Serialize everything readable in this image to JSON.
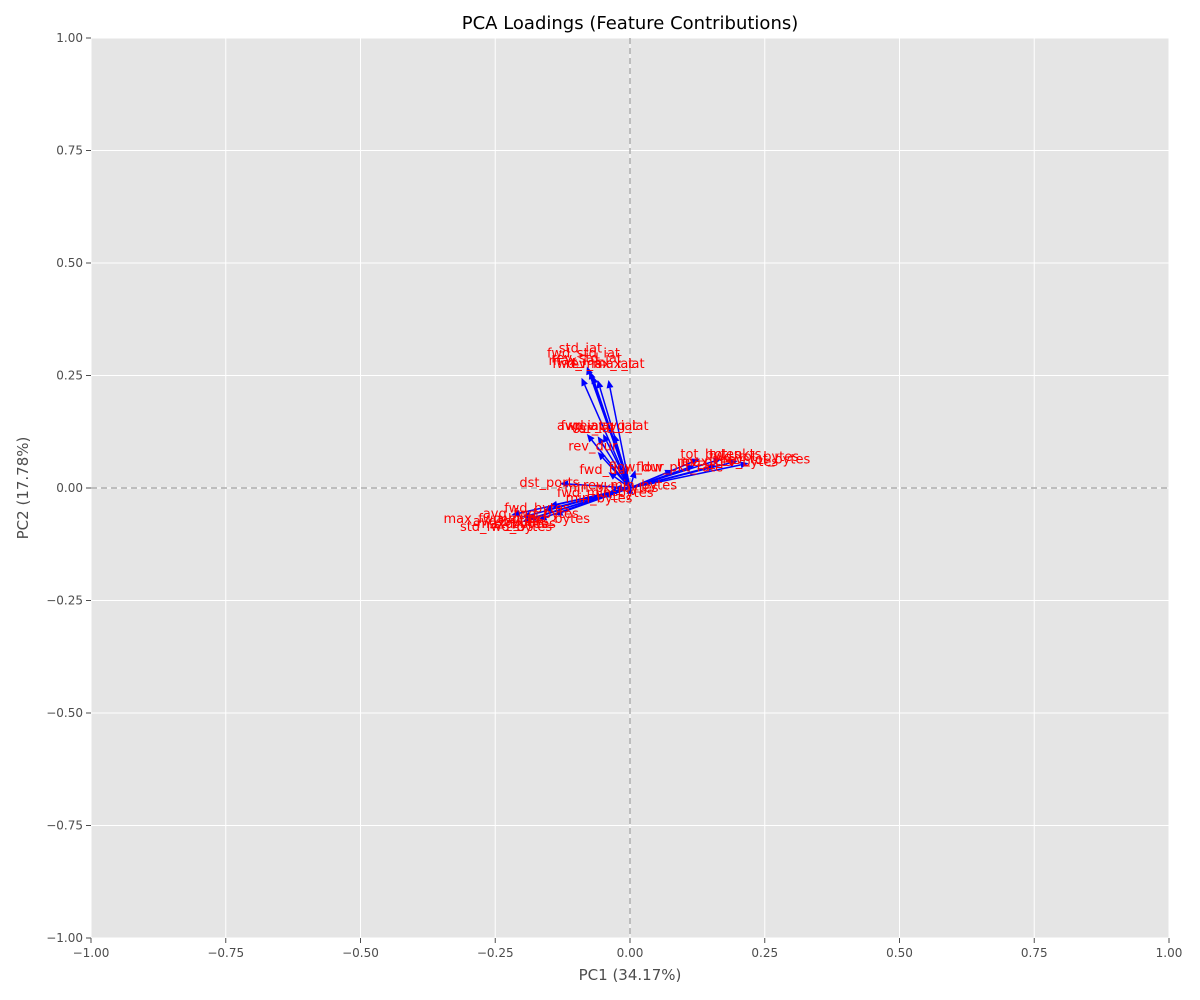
{
  "chart_data": {
    "type": "scatter",
    "subtype": "pca-loadings-biplot",
    "title": "PCA Loadings (Feature Contributions)",
    "xlabel": "PC1 (34.17%)",
    "ylabel": "PC2 (17.78%)",
    "xlim": [
      -1.0,
      1.0
    ],
    "ylim": [
      -1.0,
      1.0
    ],
    "x_ticks": [
      -1.0,
      -0.75,
      -0.5,
      -0.25,
      0.0,
      0.25,
      0.5,
      0.75,
      1.0
    ],
    "y_ticks": [
      -1.0,
      -0.75,
      -0.5,
      -0.25,
      0.0,
      0.25,
      0.5,
      0.75,
      1.0
    ],
    "x_tick_labels": [
      "−1.00",
      "−0.75",
      "−0.50",
      "−0.25",
      "0.00",
      "0.25",
      "0.50",
      "0.75",
      "1.00"
    ],
    "y_tick_labels": [
      "−1.00",
      "−0.75",
      "−0.50",
      "−0.25",
      "0.00",
      "0.25",
      "0.50",
      "0.75",
      "1.00"
    ],
    "grid": true,
    "reference_lines": [
      {
        "axis": "x",
        "value": 0,
        "style": "dashed"
      },
      {
        "axis": "y",
        "value": 0,
        "style": "dashed"
      }
    ],
    "colors": {
      "background": "#e5e5e5",
      "grid": "#ffffff",
      "arrow": "#0000ff",
      "label": "#ff0000",
      "reference_line": "#b0b0b0"
    },
    "loadings": [
      {
        "label": "std_iat",
        "x": -0.08,
        "y": 0.27
      },
      {
        "label": "fwd_std_iat",
        "x": -0.075,
        "y": 0.26
      },
      {
        "label": "rev_std_iat",
        "x": -0.07,
        "y": 0.25
      },
      {
        "label": "max_iat",
        "x": -0.09,
        "y": 0.245
      },
      {
        "label": "fwd_max_iat",
        "x": -0.06,
        "y": 0.24
      },
      {
        "label": "rev_max_iat",
        "x": -0.04,
        "y": 0.24
      },
      {
        "label": "avg_iat",
        "x": -0.08,
        "y": 0.12
      },
      {
        "label": "fwd_avg_iat",
        "x": -0.05,
        "y": 0.12
      },
      {
        "label": "rev_avg_iat",
        "x": -0.03,
        "y": 0.12
      },
      {
        "label": "var_iat",
        "x": -0.06,
        "y": 0.115
      },
      {
        "label": "rev_dur",
        "x": -0.06,
        "y": 0.08
      },
      {
        "label": "dst_ports",
        "x": -0.13,
        "y": 0.01
      },
      {
        "label": "fwd_dur",
        "x": -0.04,
        "y": 0.035
      },
      {
        "label": "flow_dur",
        "x": 0.01,
        "y": 0.04
      },
      {
        "label": "flow_pkt_rate",
        "x": 0.08,
        "y": 0.04
      },
      {
        "label": "tot_bytes",
        "x": 0.13,
        "y": 0.065
      },
      {
        "label": "tot_pkts",
        "x": 0.17,
        "y": 0.065
      },
      {
        "label": "fwd_tot_bytes",
        "x": 0.2,
        "y": 0.06
      },
      {
        "label": "rev_tot_bytes",
        "x": 0.22,
        "y": 0.055
      },
      {
        "label": "max_rev_bytes",
        "x": 0.16,
        "y": 0.05
      },
      {
        "label": "rev_pkts",
        "x": 0.12,
        "y": 0.05
      },
      {
        "label": "min_pkt_bytes",
        "x": -0.03,
        "y": 0.0
      },
      {
        "label": "rev_min_bytes",
        "x": 0.0,
        "y": 0.005
      },
      {
        "label": "fwd_min_bytes",
        "x": -0.04,
        "y": -0.01
      },
      {
        "label": "min_bytes",
        "x": -0.05,
        "y": -0.02
      },
      {
        "label": "avg_fwd_bytes",
        "x": -0.16,
        "y": -0.05
      },
      {
        "label": "fwd_bytes",
        "x": -0.15,
        "y": -0.04
      },
      {
        "label": "max_fwd_bytes",
        "x": -0.22,
        "y": -0.06
      },
      {
        "label": "avg_bytes",
        "x": -0.2,
        "y": -0.065
      },
      {
        "label": "max_bytes",
        "x": -0.19,
        "y": -0.07
      },
      {
        "label": "std_fwd_bytes",
        "x": -0.2,
        "y": -0.075
      },
      {
        "label": "std_bytes",
        "x": -0.17,
        "y": -0.07
      },
      {
        "label": "avg_pkt_bytes",
        "x": -0.14,
        "y": -0.06
      }
    ]
  }
}
